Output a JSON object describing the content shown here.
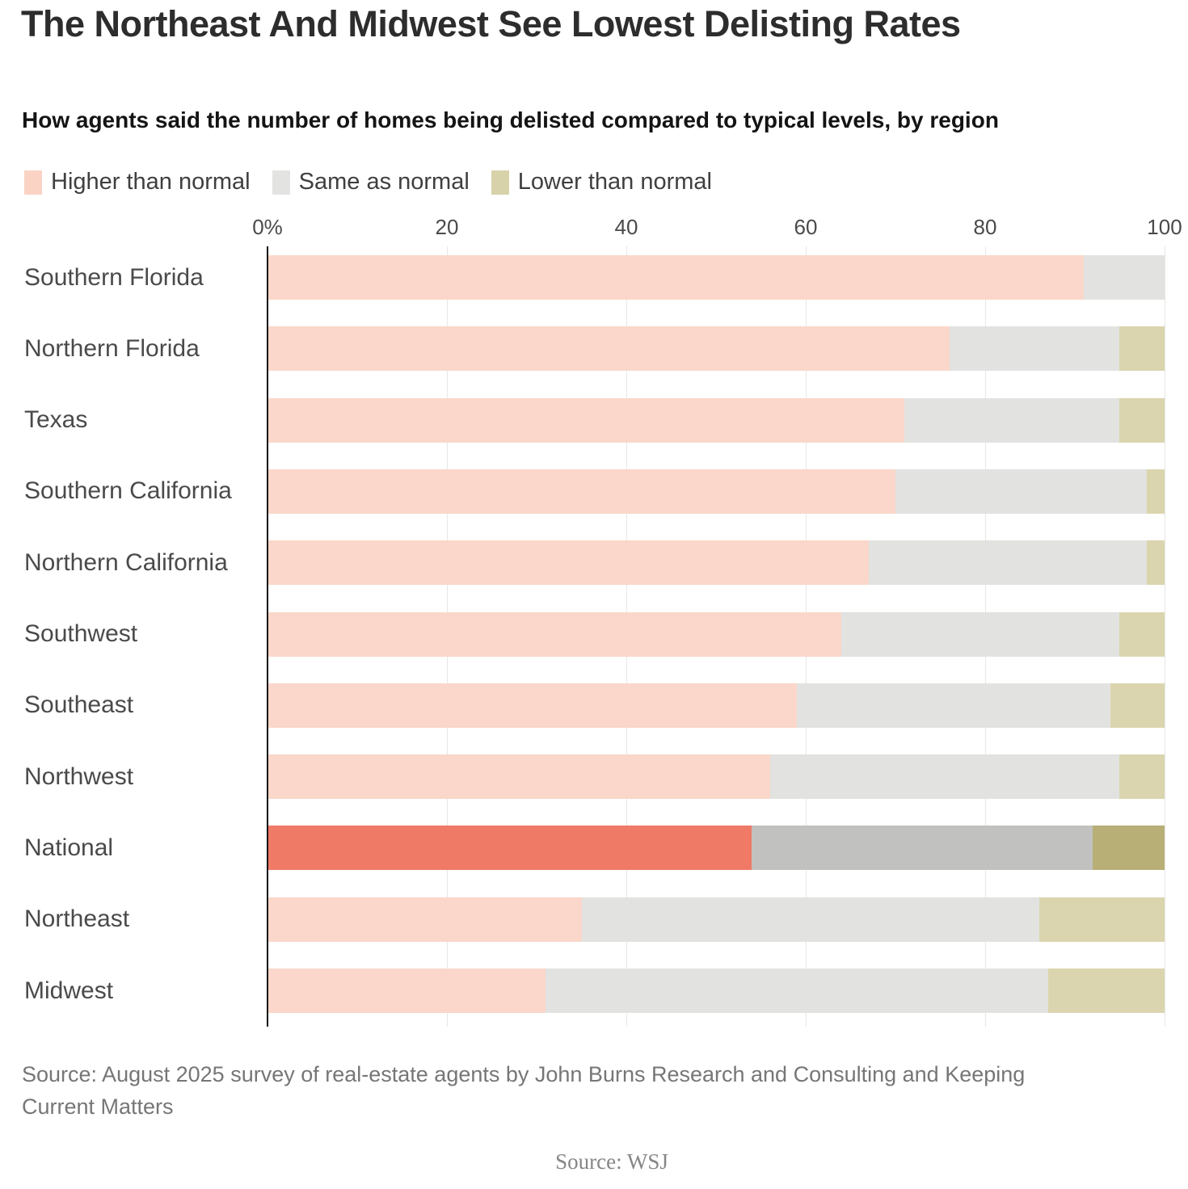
{
  "title": "The Northeast And Midwest See Lowest Delisting Rates",
  "subtitle": "How agents said the number of homes being delisted compared to typical levels, by region",
  "legend": {
    "items": [
      {
        "label": "Higher than normal",
        "color": "#fad3c5"
      },
      {
        "label": "Same as normal",
        "color": "#e3e3e1"
      },
      {
        "label": "Lower than normal",
        "color": "#d8d2ab"
      }
    ]
  },
  "source_note_line1": "Source: August 2025 survey of real-estate agents by John Burns Research and Consulting and Keeping",
  "source_note_line2": "Current Matters",
  "credit": "Source: WSJ",
  "chart_data": {
    "type": "bar",
    "stacked": true,
    "orientation": "horizontal",
    "title": "The Northeast And Midwest See Lowest Delisting Rates",
    "subtitle": "How agents said the number of homes being delisted compared to typical levels, by region",
    "xlabel": "",
    "ylabel": "",
    "xlim": [
      0,
      100
    ],
    "ticks": [
      {
        "label": "0%",
        "value": 0
      },
      {
        "label": "20",
        "value": 20
      },
      {
        "label": "40",
        "value": 40
      },
      {
        "label": "60",
        "value": 60
      },
      {
        "label": "80",
        "value": 80
      },
      {
        "label": "100",
        "value": 100
      }
    ],
    "grid": true,
    "legend_position": "top",
    "categories": [
      "Southern Florida",
      "Northern Florida",
      "Texas",
      "Southern California",
      "Northern California",
      "Southwest",
      "Southeast",
      "Northwest",
      "National",
      "Northeast",
      "Midwest"
    ],
    "highlighted_category": "National",
    "series": [
      {
        "name": "Higher than normal",
        "color": "#fad7ca",
        "highlight_color": "#ef7a66",
        "values": [
          91,
          76,
          71,
          70,
          67,
          64,
          59,
          56,
          54,
          35,
          31
        ]
      },
      {
        "name": "Same as normal",
        "color": "#e2e2e0",
        "highlight_color": "#c1c1bf",
        "values": [
          9,
          19,
          24,
          28,
          31,
          31,
          35,
          39,
          38,
          51,
          56
        ]
      },
      {
        "name": "Lower than normal",
        "color": "#dbd5af",
        "highlight_color": "#b8af77",
        "values": [
          0,
          5,
          5,
          2,
          2,
          5,
          6,
          5,
          8,
          14,
          13
        ]
      }
    ]
  }
}
